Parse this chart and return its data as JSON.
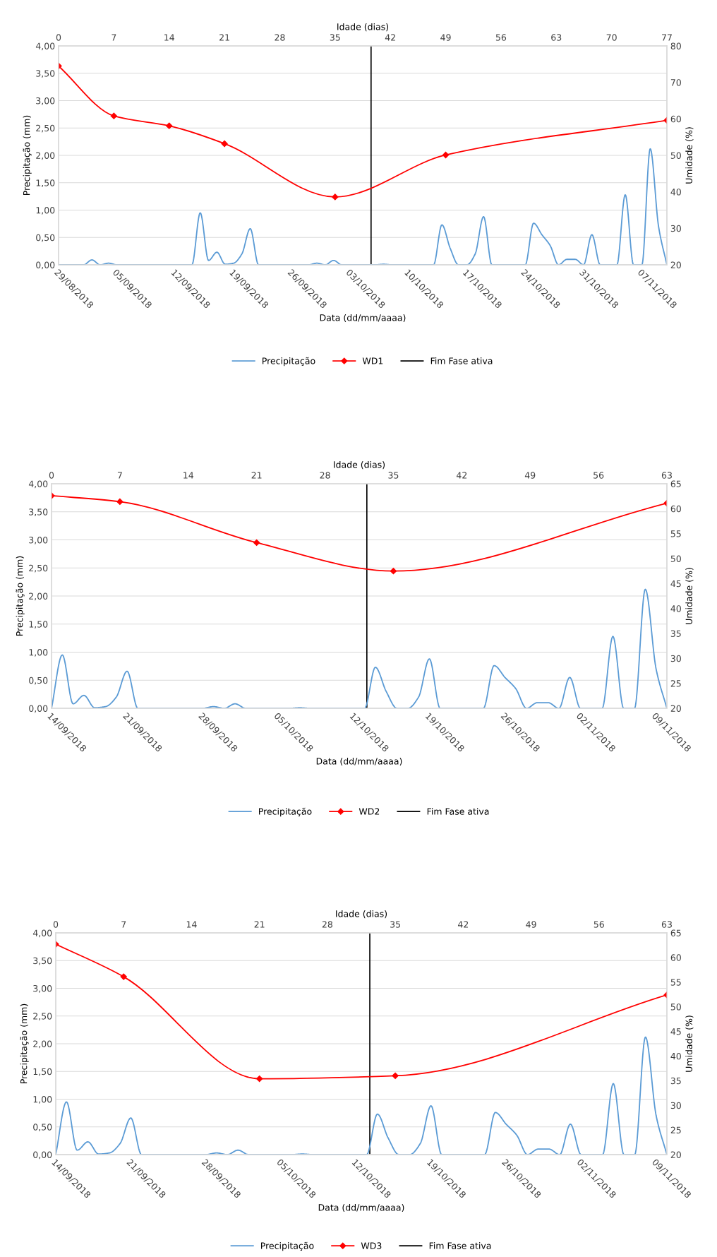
{
  "chart_data": [
    {
      "type": "line",
      "xlabel": "Data (dd/mm/aaaa)",
      "ylabel": "Precipitação (mm)",
      "y2label": "Umidade (%)",
      "x2label": "Idade (dias)",
      "xlim": [
        "2018-08-29",
        "2018-11-10"
      ],
      "xticks": [
        {
          "value": "2018-08-29",
          "label": "29/08/2018"
        },
        {
          "value": "2018-09-05",
          "label": "05/09/2018"
        },
        {
          "value": "2018-09-12",
          "label": "12/09/2018"
        },
        {
          "value": "2018-09-19",
          "label": "19/09/2018"
        },
        {
          "value": "2018-09-26",
          "label": "26/09/2018"
        },
        {
          "value": "2018-10-03",
          "label": "03/10/2018"
        },
        {
          "value": "2018-10-10",
          "label": "10/10/2018"
        },
        {
          "value": "2018-10-17",
          "label": "17/10/2018"
        },
        {
          "value": "2018-10-24",
          "label": "24/10/2018"
        },
        {
          "value": "2018-10-31",
          "label": "31/10/2018"
        },
        {
          "value": "2018-11-07",
          "label": "07/11/2018"
        }
      ],
      "ylim": [
        0,
        4
      ],
      "yticks": [
        {
          "value": 0,
          "label": "0,00"
        },
        {
          "value": 0.5,
          "label": "0,50"
        },
        {
          "value": 1,
          "label": "1,00"
        },
        {
          "value": 1.5,
          "label": "1,50"
        },
        {
          "value": 2,
          "label": "2,00"
        },
        {
          "value": 2.5,
          "label": "2,50"
        },
        {
          "value": 3,
          "label": "3,00"
        },
        {
          "value": 3.5,
          "label": "3,50"
        },
        {
          "value": 4,
          "label": "4,00"
        }
      ],
      "y2lim": [
        20,
        80
      ],
      "y2ticks": [
        20,
        30,
        40,
        50,
        60,
        70,
        80
      ],
      "x2lim": [
        0,
        77
      ],
      "x2ticks": [
        0,
        7,
        14,
        21,
        28,
        35,
        42,
        49,
        56,
        63,
        70,
        77
      ],
      "grid": "y",
      "legend": "bottom",
      "series": [
        {
          "name": "Precipitação",
          "color": "#5b9bd5",
          "x": [
            "2018-08-29",
            "2018-08-30",
            "2018-08-31",
            "2018-09-01",
            "2018-09-02",
            "2018-09-03",
            "2018-09-04",
            "2018-09-05",
            "2018-09-06",
            "2018-09-07",
            "2018-09-08",
            "2018-09-09",
            "2018-09-10",
            "2018-09-11",
            "2018-09-12",
            "2018-09-13",
            "2018-09-14",
            "2018-09-15",
            "2018-09-16",
            "2018-09-17",
            "2018-09-18",
            "2018-09-19",
            "2018-09-20",
            "2018-09-21",
            "2018-09-22",
            "2018-09-23",
            "2018-09-24",
            "2018-09-25",
            "2018-09-26",
            "2018-09-27",
            "2018-09-28",
            "2018-09-29",
            "2018-09-30",
            "2018-10-01",
            "2018-10-02",
            "2018-10-03",
            "2018-10-04",
            "2018-10-05",
            "2018-10-06",
            "2018-10-07",
            "2018-10-08",
            "2018-10-09",
            "2018-10-10",
            "2018-10-11",
            "2018-10-12",
            "2018-10-13",
            "2018-10-14",
            "2018-10-15",
            "2018-10-16",
            "2018-10-17",
            "2018-10-18",
            "2018-10-19",
            "2018-10-20",
            "2018-10-21",
            "2018-10-22",
            "2018-10-23",
            "2018-10-24",
            "2018-10-25",
            "2018-10-26",
            "2018-10-27",
            "2018-10-28",
            "2018-10-29",
            "2018-10-30",
            "2018-10-31",
            "2018-11-01",
            "2018-11-02",
            "2018-11-03",
            "2018-11-04",
            "2018-11-05",
            "2018-11-06",
            "2018-11-07",
            "2018-11-08",
            "2018-11-09",
            "2018-11-10"
          ],
          "values": [
            0,
            0,
            0,
            0,
            0.09,
            0,
            0.03,
            0,
            0,
            0,
            0,
            0,
            0,
            0,
            0,
            0,
            0,
            0.95,
            0.08,
            0.23,
            0.01,
            0.03,
            0.2,
            0.66,
            0,
            0,
            0,
            0,
            0,
            0,
            0,
            0.03,
            0,
            0.08,
            0,
            0,
            0,
            0,
            0,
            0.01,
            0,
            0,
            0,
            0,
            0,
            0,
            0.73,
            0.3,
            0,
            0,
            0.2,
            0.88,
            0,
            0,
            0,
            0,
            0,
            0.76,
            0.55,
            0.35,
            0,
            0.1,
            0.1,
            0,
            0.55,
            0,
            0,
            0,
            1.28,
            0,
            0,
            2.12,
            0.7,
            0
          ]
        },
        {
          "name": "WD1",
          "color": "#ff0000",
          "axis": "y2",
          "marker": "diamond",
          "x": [
            "2018-08-29T00:00",
            "2018-09-04T15:16",
            "2018-09-11T06:33",
            "2018-09-17T21:49",
            "2018-10-01T04:22",
            "2018-10-14T10:55",
            "2018-11-10T00:00"
          ],
          "values": [
            74.5,
            60.8,
            58.1,
            53.2,
            38.6,
            50.1,
            59.6
          ]
        }
      ],
      "ref_lines": [
        {
          "axis": "x",
          "value": "2018-10-05T12:00",
          "label": "Fim Fase ativa",
          "color": "#000000"
        }
      ]
    },
    {
      "type": "line",
      "xlabel": "Data (dd/mm/aaaa)",
      "ylabel": "Precipitação (mm)",
      "y2label": "Umidade (%)",
      "x2label": "Idade (dias)",
      "xlim": [
        "2018-09-14",
        "2018-11-10"
      ],
      "xticks": [
        {
          "value": "2018-09-14",
          "label": "14/09/2018"
        },
        {
          "value": "2018-09-21",
          "label": "21/09/2018"
        },
        {
          "value": "2018-09-28",
          "label": "28/09/2018"
        },
        {
          "value": "2018-10-05",
          "label": "05/10/2018"
        },
        {
          "value": "2018-10-12",
          "label": "12/10/2018"
        },
        {
          "value": "2018-10-19",
          "label": "19/10/2018"
        },
        {
          "value": "2018-10-26",
          "label": "26/10/2018"
        },
        {
          "value": "2018-11-02",
          "label": "02/11/2018"
        },
        {
          "value": "2018-11-09",
          "label": "09/11/2018"
        }
      ],
      "ylim": [
        0,
        4
      ],
      "yticks": [
        {
          "value": 0,
          "label": "0,00"
        },
        {
          "value": 0.5,
          "label": "0,50"
        },
        {
          "value": 1,
          "label": "1,00"
        },
        {
          "value": 1.5,
          "label": "1,50"
        },
        {
          "value": 2,
          "label": "2,00"
        },
        {
          "value": 2.5,
          "label": "2,50"
        },
        {
          "value": 3,
          "label": "3,00"
        },
        {
          "value": 3.5,
          "label": "3,50"
        },
        {
          "value": 4,
          "label": "4,00"
        }
      ],
      "y2lim": [
        20,
        65
      ],
      "y2ticks": [
        20,
        25,
        30,
        35,
        40,
        45,
        50,
        55,
        60,
        65
      ],
      "x2lim": [
        0,
        63
      ],
      "x2ticks": [
        0,
        7,
        14,
        21,
        28,
        35,
        42,
        49,
        56,
        63
      ],
      "grid": "y",
      "legend": "bottom",
      "series": [
        {
          "name": "Precipitação",
          "color": "#5b9bd5",
          "x": [
            "2018-09-14",
            "2018-09-15",
            "2018-09-16",
            "2018-09-17",
            "2018-09-18",
            "2018-09-19",
            "2018-09-20",
            "2018-09-21",
            "2018-09-22",
            "2018-09-23",
            "2018-09-24",
            "2018-09-25",
            "2018-09-26",
            "2018-09-27",
            "2018-09-28",
            "2018-09-29",
            "2018-09-30",
            "2018-10-01",
            "2018-10-02",
            "2018-10-03",
            "2018-10-04",
            "2018-10-05",
            "2018-10-06",
            "2018-10-07",
            "2018-10-08",
            "2018-10-09",
            "2018-10-10",
            "2018-10-11",
            "2018-10-12",
            "2018-10-13",
            "2018-10-14",
            "2018-10-15",
            "2018-10-16",
            "2018-10-17",
            "2018-10-18",
            "2018-10-19",
            "2018-10-20",
            "2018-10-21",
            "2018-10-22",
            "2018-10-23",
            "2018-10-24",
            "2018-10-25",
            "2018-10-26",
            "2018-10-27",
            "2018-10-28",
            "2018-10-29",
            "2018-10-30",
            "2018-10-31",
            "2018-11-01",
            "2018-11-02",
            "2018-11-03",
            "2018-11-04",
            "2018-11-05",
            "2018-11-06",
            "2018-11-07",
            "2018-11-08",
            "2018-11-09",
            "2018-11-10"
          ],
          "values": [
            0,
            0.95,
            0.08,
            0.23,
            0.01,
            0.03,
            0.2,
            0.66,
            0,
            0,
            0,
            0,
            0,
            0,
            0,
            0.03,
            0,
            0.08,
            0,
            0,
            0,
            0,
            0,
            0.01,
            0,
            0,
            0,
            0,
            0,
            0,
            0.73,
            0.3,
            0,
            0,
            0.2,
            0.88,
            0,
            0,
            0,
            0,
            0,
            0.76,
            0.55,
            0.35,
            0,
            0.1,
            0.1,
            0,
            0.55,
            0,
            0,
            0,
            1.28,
            0,
            0,
            2.12,
            0.7,
            0
          ]
        },
        {
          "name": "WD2",
          "color": "#ff0000",
          "axis": "y2",
          "marker": "diamond",
          "x": [
            "2018-09-14T00:00",
            "2018-09-20T08:00",
            "2018-10-03T00:00",
            "2018-10-15T16:00",
            "2018-11-10T00:00"
          ],
          "values": [
            62.6,
            61.4,
            53.2,
            47.5,
            61.1
          ]
        }
      ],
      "ref_lines": [
        {
          "axis": "x",
          "value": "2018-10-13T05:00",
          "label": "Fim Fase ativa",
          "color": "#000000"
        }
      ]
    },
    {
      "type": "line",
      "xlabel": "Data (dd/mm/aaaa)",
      "ylabel": "Precipitação (mm)",
      "y2label": "Umidade (%)",
      "x2label": "Idade (dias)",
      "xlim": [
        "2018-09-14",
        "2018-11-10"
      ],
      "xticks": [
        {
          "value": "2018-09-14",
          "label": "14/09/2018"
        },
        {
          "value": "2018-09-21",
          "label": "21/09/2018"
        },
        {
          "value": "2018-09-28",
          "label": "28/09/2018"
        },
        {
          "value": "2018-10-05",
          "label": "05/10/2018"
        },
        {
          "value": "2018-10-12",
          "label": "12/10/2018"
        },
        {
          "value": "2018-10-19",
          "label": "19/10/2018"
        },
        {
          "value": "2018-10-26",
          "label": "26/10/2018"
        },
        {
          "value": "2018-11-02",
          "label": "02/11/2018"
        },
        {
          "value": "2018-11-09",
          "label": "09/11/2018"
        }
      ],
      "ylim": [
        0,
        4
      ],
      "yticks": [
        {
          "value": 0,
          "label": "0,00"
        },
        {
          "value": 0.5,
          "label": "0,50"
        },
        {
          "value": 1,
          "label": "1,00"
        },
        {
          "value": 1.5,
          "label": "1,50"
        },
        {
          "value": 2,
          "label": "2,00"
        },
        {
          "value": 2.5,
          "label": "2,50"
        },
        {
          "value": 3,
          "label": "3,00"
        },
        {
          "value": 3.5,
          "label": "3,50"
        },
        {
          "value": 4,
          "label": "4,00"
        }
      ],
      "y2lim": [
        20,
        65
      ],
      "y2ticks": [
        20,
        25,
        30,
        35,
        40,
        45,
        50,
        55,
        60,
        65
      ],
      "x2lim": [
        0,
        63
      ],
      "x2ticks": [
        0,
        7,
        14,
        21,
        28,
        35,
        42,
        49,
        56,
        63
      ],
      "grid": "y",
      "legend": "bottom",
      "series": [
        {
          "name": "Precipitação",
          "color": "#5b9bd5",
          "x": [
            "2018-09-14",
            "2018-09-15",
            "2018-09-16",
            "2018-09-17",
            "2018-09-18",
            "2018-09-19",
            "2018-09-20",
            "2018-09-21",
            "2018-09-22",
            "2018-09-23",
            "2018-09-24",
            "2018-09-25",
            "2018-09-26",
            "2018-09-27",
            "2018-09-28",
            "2018-09-29",
            "2018-09-30",
            "2018-10-01",
            "2018-10-02",
            "2018-10-03",
            "2018-10-04",
            "2018-10-05",
            "2018-10-06",
            "2018-10-07",
            "2018-10-08",
            "2018-10-09",
            "2018-10-10",
            "2018-10-11",
            "2018-10-12",
            "2018-10-13",
            "2018-10-14",
            "2018-10-15",
            "2018-10-16",
            "2018-10-17",
            "2018-10-18",
            "2018-10-19",
            "2018-10-20",
            "2018-10-21",
            "2018-10-22",
            "2018-10-23",
            "2018-10-24",
            "2018-10-25",
            "2018-10-26",
            "2018-10-27",
            "2018-10-28",
            "2018-10-29",
            "2018-10-30",
            "2018-10-31",
            "2018-11-01",
            "2018-11-02",
            "2018-11-03",
            "2018-11-04",
            "2018-11-05",
            "2018-11-06",
            "2018-11-07",
            "2018-11-08",
            "2018-11-09",
            "2018-11-10"
          ],
          "values": [
            0,
            0.95,
            0.08,
            0.23,
            0.01,
            0.03,
            0.2,
            0.66,
            0,
            0,
            0,
            0,
            0,
            0,
            0,
            0.03,
            0,
            0.08,
            0,
            0,
            0,
            0,
            0,
            0.01,
            0,
            0,
            0,
            0,
            0,
            0,
            0.73,
            0.3,
            0,
            0,
            0.2,
            0.88,
            0,
            0,
            0,
            0,
            0,
            0.76,
            0.55,
            0.35,
            0,
            0.1,
            0.1,
            0,
            0.55,
            0,
            0,
            0,
            1.28,
            0,
            0,
            2.12,
            0.7,
            0
          ]
        },
        {
          "name": "WD3",
          "color": "#ff0000",
          "axis": "y2",
          "marker": "diamond",
          "x": [
            "2018-09-14T00:00",
            "2018-09-20T08:00",
            "2018-10-03T00:00",
            "2018-10-15T16:00",
            "2018-11-10T00:00"
          ],
          "values": [
            62.7,
            56.1,
            35.4,
            36.0,
            52.4
          ]
        }
      ],
      "ref_lines": [
        {
          "axis": "x",
          "value": "2018-10-13T07:00",
          "label": "Fim Fase ativa",
          "color": "#000000"
        }
      ]
    }
  ]
}
